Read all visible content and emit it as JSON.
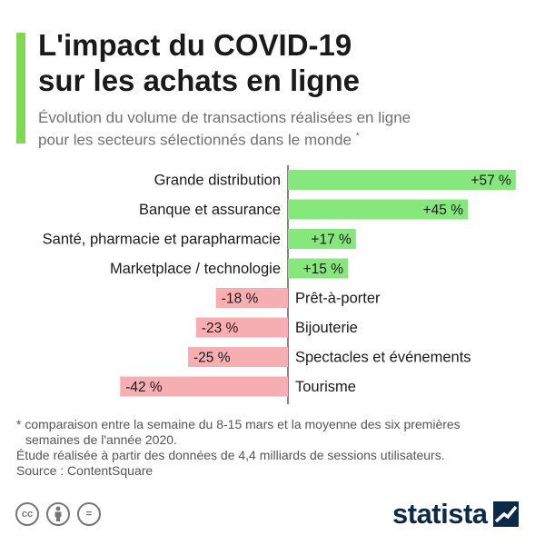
{
  "header": {
    "title_line1": "L'impact du COVID-19",
    "title_line2": "sur les achats en ligne",
    "subtitle_line1": "Évolution du volume de transactions réalisées en ligne",
    "subtitle_line2": "pour les secteurs sélectionnés dans le monde",
    "subtitle_mark": "*"
  },
  "colors": {
    "accent": "#7ed957",
    "positive": "#86e77d",
    "negative": "#f7aeb2",
    "axis": "#333333",
    "brand": "#0b2a4a"
  },
  "chart_data": {
    "type": "bar",
    "orientation": "horizontal",
    "categories": [
      "Grande distribution",
      "Banque et assurance",
      "Santé, pharmacie et parapharmacie",
      "Marketplace / technologie",
      "Prêt-à-porter",
      "Bijouterie",
      "Spectacles et événements",
      "Tourisme"
    ],
    "values": [
      57,
      45,
      17,
      15,
      -18,
      -23,
      -25,
      -42
    ],
    "value_labels": [
      "+57 %",
      "+45 %",
      "+17 %",
      "+15 %",
      "-18 %",
      "-23 %",
      "-25 %",
      "-42 %"
    ],
    "unit": "%",
    "xlim": [
      -42,
      57
    ]
  },
  "notes": {
    "line1": "* comparaison entre la semaine du 8-15 mars et la moyenne des six premières",
    "line2": "semaines de l'année 2020.",
    "line3": "Étude réalisée à partir des données de 4,4 milliards de sessions utilisateurs.",
    "line4": "Source : ContentSquare"
  },
  "license_icons": [
    {
      "icon": "creative-commons-icon",
      "text": "cc"
    },
    {
      "icon": "attribution-icon",
      "text": ""
    },
    {
      "icon": "no-derivatives-icon",
      "text": "="
    }
  ],
  "brand": {
    "name": "statista"
  }
}
